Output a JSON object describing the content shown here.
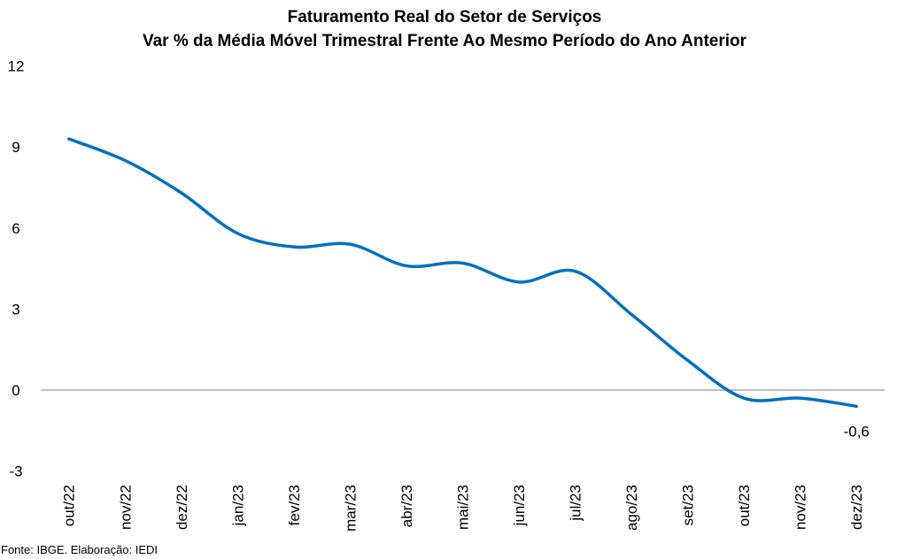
{
  "chart_data": {
    "type": "line",
    "title": "Faturamento Real do Setor de Serviços",
    "subtitle": "Var % da Média Móvel Trimestral Frente Ao Mesmo Período do Ano Anterior",
    "xlabel": "",
    "ylabel": "",
    "categories": [
      "out/22",
      "nov/22",
      "dez/22",
      "jan/23",
      "fev/23",
      "mar/23",
      "abr/23",
      "mai/23",
      "jun/23",
      "jul/23",
      "ago/23",
      "set/23",
      "out/23",
      "nov/23",
      "dez/23"
    ],
    "series": [
      {
        "values": [
          9.3,
          8.5,
          7.3,
          5.8,
          5.3,
          5.4,
          4.6,
          4.7,
          4.0,
          4.4,
          2.8,
          1.1,
          -0.3,
          -0.3,
          -0.6
        ],
        "color": "#0070C0",
        "smooth": true
      }
    ],
    "ylim": [
      -3,
      12
    ],
    "yticks": [
      12,
      9,
      6,
      3,
      0,
      -3
    ],
    "ytick_labels": [
      "12",
      "9",
      "6",
      "3",
      "0",
      "-3"
    ],
    "data_labels": [
      {
        "category": "dez/23",
        "text": "-0,6"
      }
    ],
    "zero_line": true,
    "grid": false,
    "legend": "none",
    "colors": {
      "axis": "#808080",
      "text": "#000000"
    }
  },
  "source": "Fonte: IBGE. Elaboração: IEDI"
}
